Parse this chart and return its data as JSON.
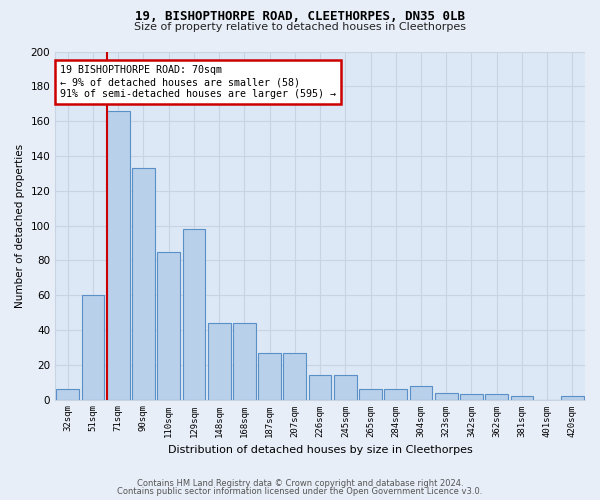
{
  "title1": "19, BISHOPTHORPE ROAD, CLEETHORPES, DN35 0LB",
  "title2": "Size of property relative to detached houses in Cleethorpes",
  "xlabel": "Distribution of detached houses by size in Cleethorpes",
  "ylabel": "Number of detached properties",
  "categories": [
    "32sqm",
    "51sqm",
    "71sqm",
    "90sqm",
    "110sqm",
    "129sqm",
    "148sqm",
    "168sqm",
    "187sqm",
    "207sqm",
    "226sqm",
    "245sqm",
    "265sqm",
    "284sqm",
    "304sqm",
    "323sqm",
    "342sqm",
    "362sqm",
    "381sqm",
    "401sqm",
    "420sqm"
  ],
  "values": [
    6,
    60,
    166,
    133,
    85,
    98,
    44,
    44,
    27,
    27,
    14,
    14,
    6,
    6,
    8,
    4,
    3,
    3,
    2,
    0,
    2
  ],
  "bar_color": "#b8d0ea",
  "bar_edge_color": "#5b8fc7",
  "annotation_title": "19 BISHOPTHORPE ROAD: 70sqm",
  "annotation_line1": "← 9% of detached houses are smaller (58)",
  "annotation_line2": "91% of semi-detached houses are larger (595) →",
  "annotation_box_color": "#ffffff",
  "annotation_border_color": "#cc0000",
  "ylim": [
    0,
    200
  ],
  "yticks": [
    0,
    20,
    40,
    60,
    80,
    100,
    120,
    140,
    160,
    180,
    200
  ],
  "grid_color": "#c8d4e4",
  "background_color": "#dce8f5",
  "fig_background": "#e8eef8",
  "footer1": "Contains HM Land Registry data © Crown copyright and database right 2024.",
  "footer2": "Contains public sector information licensed under the Open Government Licence v3.0."
}
